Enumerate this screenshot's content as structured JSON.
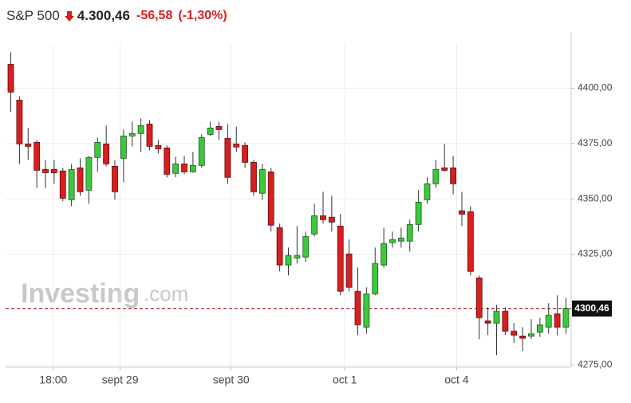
{
  "header": {
    "name": "S&P 500",
    "price": "4.300,46",
    "change": "-56,58",
    "change_pct": "(-1,30%)"
  },
  "chart_data": {
    "type": "candlestick",
    "watermark": [
      "Investing",
      ".com"
    ],
    "up_color": "#3cc83c",
    "down_color": "#d91e1e",
    "open": [
      4410.8,
      4394.6,
      4374.8,
      4375.5,
      4363.3,
      4363.3,
      4362.6,
      4349.6,
      4364,
      4353.9,
      4368.7,
      4374.8,
      4364.7,
      4368.3,
      4378.4,
      4379.5,
      4383.8,
      4374.1,
      4373,
      4361.5,
      4365.8,
      4362.2,
      4365.1,
      4379.1,
      4382.7,
      4377.3,
      4374.8,
      4374.1,
      4366.5,
      4352.5,
      4362.2,
      4337,
      4320.1,
      4323.3,
      4323.7,
      4334.1,
      4342.4,
      4341.7,
      4337.7,
      4325.1,
      4308.2,
      4292,
      4307.1,
      4320.1,
      4330.2,
      4330.9,
      4330.9,
      4338.4,
      4349.6,
      4356.8,
      4364,
      4364,
      4344.6,
      4344.2,
      4314.3,
      4294.9,
      4293.8,
      4299.2,
      4290.2,
      4288,
      4288,
      4289.8,
      4292,
      4298.1,
      4292
    ],
    "high": [
      4416.2,
      4396.4,
      4382,
      4376.6,
      4367.6,
      4367.6,
      4364,
      4365.8,
      4368.3,
      4369.4,
      4377.7,
      4383.1,
      4367.6,
      4381.3,
      4384.9,
      4386.3,
      4385.6,
      4376.6,
      4374.1,
      4369,
      4369.4,
      4371.2,
      4379.1,
      4384.9,
      4384.9,
      4383.8,
      4382.7,
      4375.5,
      4367.6,
      4365.8,
      4364,
      4338.8,
      4328,
      4337.7,
      4335.2,
      4347.8,
      4353.2,
      4351.4,
      4343.1,
      4331.6,
      4319,
      4310,
      4328,
      4337,
      4335.2,
      4337,
      4340.6,
      4353.9,
      4359.7,
      4367.6,
      4374.8,
      4369.4,
      4353.2,
      4346.7,
      4315.4,
      4301,
      4302.1,
      4301,
      4293.8,
      4292,
      4295.6,
      4296.3,
      4302.8,
      4306.4,
      4305.3
    ],
    "low": [
      4389.2,
      4365.8,
      4367.6,
      4355,
      4355,
      4356.8,
      4348.9,
      4346.7,
      4351.4,
      4347.8,
      4362.2,
      4364.7,
      4349.6,
      4357.5,
      4373.7,
      4371.2,
      4371.9,
      4370.5,
      4359.7,
      4359.7,
      4361.1,
      4361.8,
      4364,
      4378.4,
      4376.6,
      4356.8,
      4371.2,
      4364,
      4351.4,
      4349.6,
      4335.2,
      4317.2,
      4315.4,
      4320.8,
      4321.5,
      4333,
      4338.8,
      4335.2,
      4306.4,
      4308.2,
      4288.4,
      4289.1,
      4306.4,
      4319,
      4328,
      4328,
      4326.2,
      4335.2,
      4347.8,
      4355,
      4362.2,
      4352.1,
      4337.7,
      4315.4,
      4286.6,
      4288.4,
      4279.4,
      4288.4,
      4284.8,
      4281.2,
      4286.6,
      4287.7,
      4289.1,
      4288.4,
      4289.1
    ],
    "close": [
      4398.2,
      4374.8,
      4373.7,
      4362.9,
      4361.8,
      4361.8,
      4350.3,
      4363.3,
      4353.2,
      4368.7,
      4375.5,
      4365.8,
      4353.2,
      4378.4,
      4379.5,
      4383.1,
      4373.7,
      4372.6,
      4361.1,
      4365.8,
      4362.2,
      4365.1,
      4377.7,
      4382,
      4381.3,
      4359.7,
      4373.4,
      4366.5,
      4353.2,
      4363.3,
      4338.1,
      4320.1,
      4324.4,
      4324.4,
      4333,
      4342.4,
      4340.6,
      4339.5,
      4308.2,
      4310,
      4293.1,
      4307.1,
      4320.8,
      4329.8,
      4331.6,
      4332.3,
      4338.4,
      4348.5,
      4356.8,
      4363.3,
      4362.9,
      4356.8,
      4343.1,
      4317.2,
      4296.3,
      4293.8,
      4299.2,
      4290.2,
      4288.4,
      4287,
      4289.1,
      4293.1,
      4297.4,
      4292,
      4300.46
    ],
    "xlim": [
      -0.6,
      64.6
    ],
    "xticks": [
      {
        "value": 4.9,
        "label": "18:00"
      },
      {
        "value": 12.6,
        "label": "sept 29"
      },
      {
        "value": 25.4,
        "label": "sept 30"
      },
      {
        "value": 38.5,
        "label": "oct 1"
      },
      {
        "value": 51.4,
        "label": "oct 4"
      }
    ],
    "ylim": [
      4274,
      4420
    ],
    "yticks": [
      {
        "value": 4275,
        "label": "4275,00"
      },
      {
        "value": 4300,
        "label": "4300,00"
      },
      {
        "value": 4325,
        "label": "4325,00"
      },
      {
        "value": 4350,
        "label": "4350,00"
      },
      {
        "value": 4375,
        "label": "4375,00"
      },
      {
        "value": 4400,
        "label": "4400,00"
      }
    ],
    "last_price": {
      "value": 4300.46,
      "label": "4300,46"
    },
    "grid": true
  }
}
